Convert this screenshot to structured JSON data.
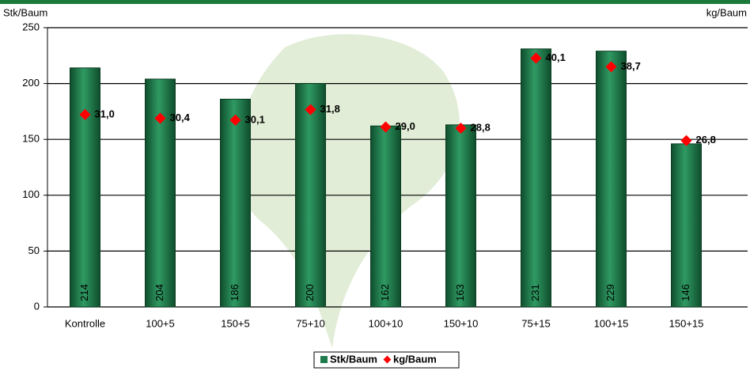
{
  "chart_data": {
    "type": "bar",
    "y_label": "Stk/Baum",
    "y2_label": "kg/Baum",
    "categories": [
      "Kontrolle",
      "100+5",
      "150+5",
      "75+10",
      "100+10",
      "150+10",
      "75+15",
      "100+15",
      "150+15"
    ],
    "series": [
      {
        "name": "Stk/Baum",
        "color": "#1f7a4c",
        "values": [
          214,
          204,
          186,
          200,
          162,
          163,
          231,
          229,
          146
        ]
      },
      {
        "name": "kg/Baum",
        "color": "#ff0000",
        "axis": "y2",
        "values": [
          31.0,
          30.4,
          30.1,
          31.8,
          29.0,
          28.8,
          40.1,
          38.7,
          26.8
        ],
        "value_labels": [
          "31,0",
          "30,4",
          "30,1",
          "31,8",
          "29,0",
          "28,8",
          "40,1",
          "38,7",
          "26,8"
        ]
      }
    ],
    "ylim": [
      0,
      250
    ],
    "yticks": [
      0,
      50,
      100,
      150,
      200,
      250
    ],
    "y2lim": [
      0,
      45
    ],
    "grid": true
  }
}
